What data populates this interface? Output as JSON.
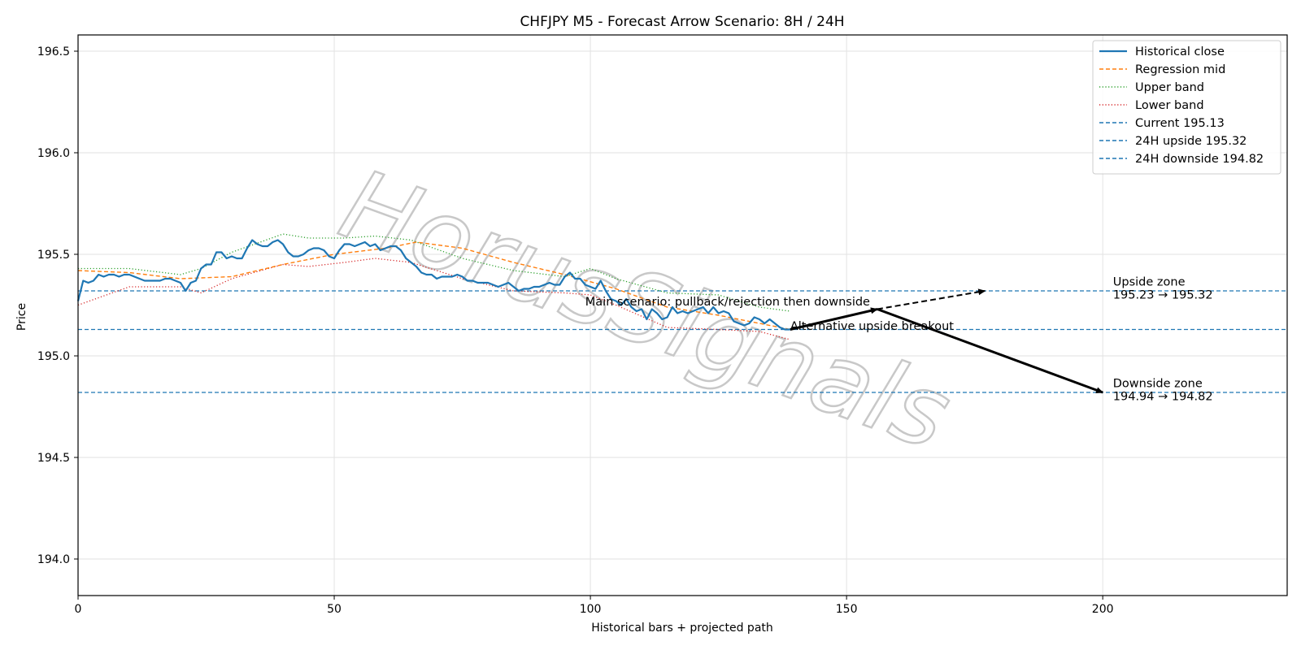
{
  "chart_data": {
    "type": "line",
    "title": "CHFJPY M5 - Forecast Arrow Scenario: 8H / 24H",
    "xlabel": "Historical bars + projected path",
    "ylabel": "Price",
    "xlim": [
      0,
      236
    ],
    "ylim": [
      193.82,
      196.58
    ],
    "x_ticks": [
      0,
      50,
      100,
      150,
      200
    ],
    "y_ticks": [
      "194.0",
      "194.5",
      "195.0",
      "195.5",
      "196.0",
      "196.5"
    ],
    "grid": true,
    "legend_position": "top-right",
    "watermark": "HorusSignals",
    "colors": {
      "close": "#1f77b4",
      "mid": "#ff7f0e",
      "upper": "#2ca02c",
      "lower": "#d62728",
      "level": "#1f77b4",
      "arrow": "#000000"
    },
    "series": [
      {
        "name": "Historical close",
        "style": "solid",
        "color": "#1f77b4",
        "x": [
          0,
          1,
          2,
          3,
          4,
          5,
          6,
          7,
          8,
          9,
          10,
          11,
          12,
          13,
          14,
          15,
          16,
          17,
          18,
          19,
          20,
          21,
          22,
          23,
          24,
          25,
          26,
          27,
          28,
          29,
          30,
          31,
          32,
          33,
          34,
          35,
          36,
          37,
          38,
          39,
          40,
          41,
          42,
          43,
          44,
          45,
          46,
          47,
          48,
          49,
          50,
          51,
          52,
          53,
          54,
          55,
          56,
          57,
          58,
          59,
          60,
          61,
          62,
          63,
          64,
          65,
          66,
          67,
          68,
          69,
          70,
          71,
          72,
          73,
          74,
          75,
          76,
          77,
          78,
          79,
          80,
          81,
          82,
          83,
          84,
          85,
          86,
          87,
          88,
          89,
          90,
          91,
          92,
          93,
          94,
          95,
          96,
          97,
          98,
          99,
          100,
          101,
          102,
          103,
          104,
          105,
          106,
          107,
          108,
          109,
          110,
          111,
          112,
          113,
          114,
          115,
          116,
          117,
          118,
          119,
          120,
          121,
          122,
          123,
          124,
          125,
          126,
          127,
          128,
          129,
          130,
          131,
          132,
          133,
          134,
          135,
          136,
          137,
          138,
          139
        ],
        "y": [
          195.27,
          195.37,
          195.36,
          195.37,
          195.4,
          195.39,
          195.4,
          195.4,
          195.39,
          195.4,
          195.4,
          195.39,
          195.38,
          195.37,
          195.37,
          195.37,
          195.37,
          195.38,
          195.38,
          195.37,
          195.36,
          195.32,
          195.36,
          195.37,
          195.43,
          195.45,
          195.45,
          195.51,
          195.51,
          195.48,
          195.49,
          195.48,
          195.48,
          195.53,
          195.57,
          195.55,
          195.54,
          195.54,
          195.56,
          195.57,
          195.55,
          195.51,
          195.49,
          195.49,
          195.5,
          195.52,
          195.53,
          195.53,
          195.52,
          195.49,
          195.48,
          195.52,
          195.55,
          195.55,
          195.54,
          195.55,
          195.56,
          195.54,
          195.55,
          195.52,
          195.53,
          195.54,
          195.54,
          195.52,
          195.48,
          195.46,
          195.44,
          195.41,
          195.4,
          195.4,
          195.38,
          195.39,
          195.39,
          195.39,
          195.4,
          195.39,
          195.37,
          195.37,
          195.36,
          195.36,
          195.36,
          195.35,
          195.34,
          195.35,
          195.36,
          195.34,
          195.32,
          195.33,
          195.33,
          195.34,
          195.34,
          195.35,
          195.36,
          195.35,
          195.35,
          195.39,
          195.41,
          195.38,
          195.38,
          195.35,
          195.34,
          195.33,
          195.37,
          195.32,
          195.28,
          195.27,
          195.25,
          195.28,
          195.24,
          195.22,
          195.23,
          195.18,
          195.23,
          195.21,
          195.18,
          195.19,
          195.24,
          195.21,
          195.22,
          195.21,
          195.22,
          195.23,
          195.24,
          195.21,
          195.24,
          195.21,
          195.22,
          195.21,
          195.17,
          195.16,
          195.15,
          195.16,
          195.19,
          195.18,
          195.16,
          195.18,
          195.16,
          195.14,
          195.13,
          195.13
        ]
      },
      {
        "name": "Regression mid",
        "style": "dashed",
        "color": "#ff7f0e",
        "x": [
          0,
          10,
          20,
          30,
          40,
          50,
          60,
          66,
          75,
          85,
          95,
          105,
          115,
          125,
          139
        ],
        "y": [
          195.42,
          195.41,
          195.38,
          195.39,
          195.45,
          195.5,
          195.53,
          195.56,
          195.53,
          195.46,
          195.4,
          195.33,
          195.24,
          195.2,
          195.13
        ]
      },
      {
        "name": "Upper band",
        "style": "dotted",
        "color": "#2ca02c",
        "x": [
          0,
          10,
          20,
          24,
          30,
          40,
          45,
          52,
          58,
          65,
          75,
          85,
          95,
          100,
          105,
          115,
          125,
          133,
          139
        ],
        "y": [
          195.43,
          195.43,
          195.4,
          195.43,
          195.51,
          195.6,
          195.58,
          195.58,
          195.59,
          195.57,
          195.48,
          195.42,
          195.39,
          195.43,
          195.38,
          195.31,
          195.3,
          195.24,
          195.22
        ]
      },
      {
        "name": "Lower band",
        "style": "dotted",
        "color": "#d62728",
        "x": [
          0,
          10,
          20,
          24,
          30,
          40,
          45,
          52,
          58,
          65,
          75,
          85,
          95,
          100,
          105,
          115,
          125,
          133,
          139
        ],
        "y": [
          195.25,
          195.34,
          195.34,
          195.31,
          195.38,
          195.45,
          195.44,
          195.46,
          195.48,
          195.46,
          195.38,
          195.32,
          195.31,
          195.3,
          195.25,
          195.14,
          195.13,
          195.12,
          195.08
        ]
      }
    ],
    "levels": [
      {
        "name": "Current 195.13",
        "value": 195.13
      },
      {
        "name": "24H upside 195.32",
        "value": 195.32
      },
      {
        "name": "24H downside 194.82",
        "value": 194.82
      }
    ],
    "arrows": [
      {
        "from": [
          139,
          195.13
        ],
        "to": [
          156,
          195.23
        ],
        "style": "solid"
      },
      {
        "from": [
          156,
          195.23
        ],
        "to": [
          200,
          194.82
        ],
        "style": "solid"
      },
      {
        "from": [
          156,
          195.23
        ],
        "to": [
          177,
          195.32
        ],
        "style": "dashed"
      }
    ],
    "annotations": {
      "main": {
        "text": "Main scenario: pullback/rejection then downside",
        "x": 99,
        "y": 195.24
      },
      "alt": {
        "text": "Alternative upside breakout",
        "x": 139,
        "y": 195.14
      },
      "upside_zone": {
        "line1": "Upside zone",
        "line2": "195.23 → 195.32",
        "x": 202,
        "y": 195.33
      },
      "downside_zone": {
        "line1": "Downside zone",
        "line2": "194.94 → 194.82",
        "x": 202,
        "y": 194.83
      }
    }
  }
}
